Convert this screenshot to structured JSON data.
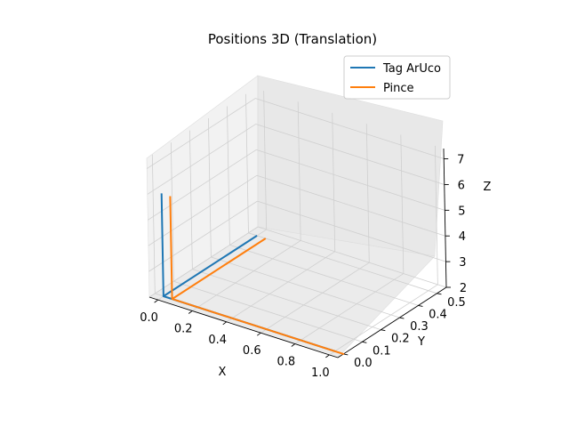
{
  "chart_data": {
    "type": "line3d",
    "title": "Positions 3D (Translation)",
    "xlabel": "X",
    "ylabel": "Y",
    "zlabel": "Z",
    "xlim": [
      -0.05,
      1.05
    ],
    "ylim": [
      -0.03,
      0.55
    ],
    "zlim": [
      2,
      7.4
    ],
    "xticks": [
      "0.0",
      "0.2",
      "0.4",
      "0.6",
      "0.8",
      "1.0"
    ],
    "yticks": [
      "0.0",
      "0.1",
      "0.2",
      "0.3",
      "0.4",
      "0.5"
    ],
    "zticks": [
      "2",
      "3",
      "4",
      "5",
      "6",
      "7"
    ],
    "legend_position": "top-right",
    "series": [
      {
        "name": "Tag ArUco",
        "color": "#1f77b4",
        "points": [
          [
            0.0,
            0.0,
            6.0
          ],
          [
            0.0,
            0.0,
            2.0
          ],
          [
            1.0,
            0.0,
            2.0
          ],
          [
            0.0,
            0.0,
            2.0
          ],
          [
            0.0,
            0.5,
            2.0
          ]
        ]
      },
      {
        "name": "Pince",
        "color": "#ff7f0e",
        "points": [
          [
            0.05,
            0.0,
            6.0
          ],
          [
            0.05,
            0.0,
            2.0
          ],
          [
            1.05,
            0.0,
            2.0
          ],
          [
            0.05,
            0.0,
            2.0
          ],
          [
            0.05,
            0.5,
            2.0
          ]
        ]
      }
    ]
  }
}
